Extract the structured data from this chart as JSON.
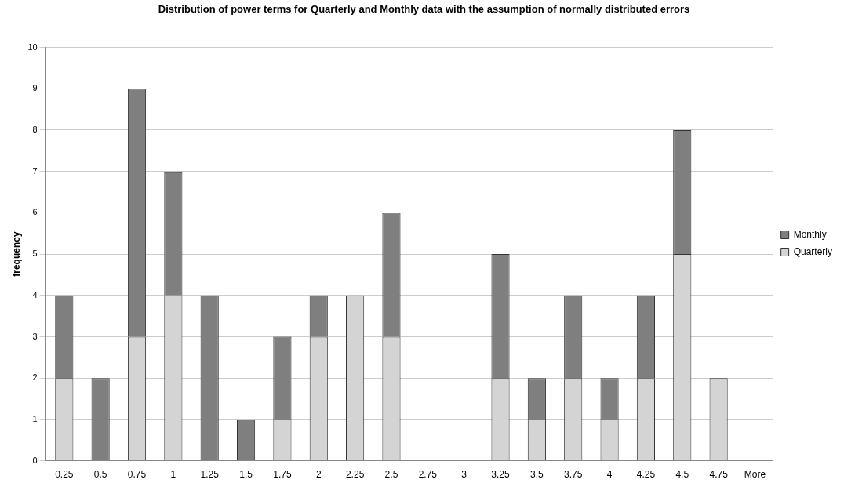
{
  "chart_data": {
    "type": "bar",
    "title": "Distribution of power terms for Quarterly and Monthly data with the assumption of normally distributed errors",
    "ylabel": "frequency",
    "categories": [
      "0.25",
      "0.5",
      "0.75",
      "1",
      "1.25",
      "1.5",
      "1.75",
      "2",
      "2.25",
      "2.5",
      "2.75",
      "3",
      "3.25",
      "3.5",
      "3.75",
      "4",
      "4.25",
      "4.5",
      "4.75",
      "More"
    ],
    "series": [
      {
        "name": "Quarterly",
        "color": "#d4d4d4",
        "values": [
          2,
          0,
          3,
          4,
          0,
          0,
          1,
          3,
          4,
          3,
          0,
          0,
          2,
          1,
          2,
          1,
          2,
          5,
          2,
          0
        ]
      },
      {
        "name": "Monthly",
        "color": "#7f7f7f",
        "values": [
          2,
          2,
          6,
          3,
          4,
          1,
          2,
          1,
          0,
          3,
          0,
          0,
          3,
          1,
          2,
          1,
          2,
          3,
          0,
          0
        ]
      }
    ],
    "stacked": true,
    "ylim": [
      0,
      10
    ],
    "yticks": [
      0,
      1,
      2,
      3,
      4,
      5,
      6,
      7,
      8,
      9,
      10
    ],
    "grid": "y",
    "legend": "right"
  }
}
